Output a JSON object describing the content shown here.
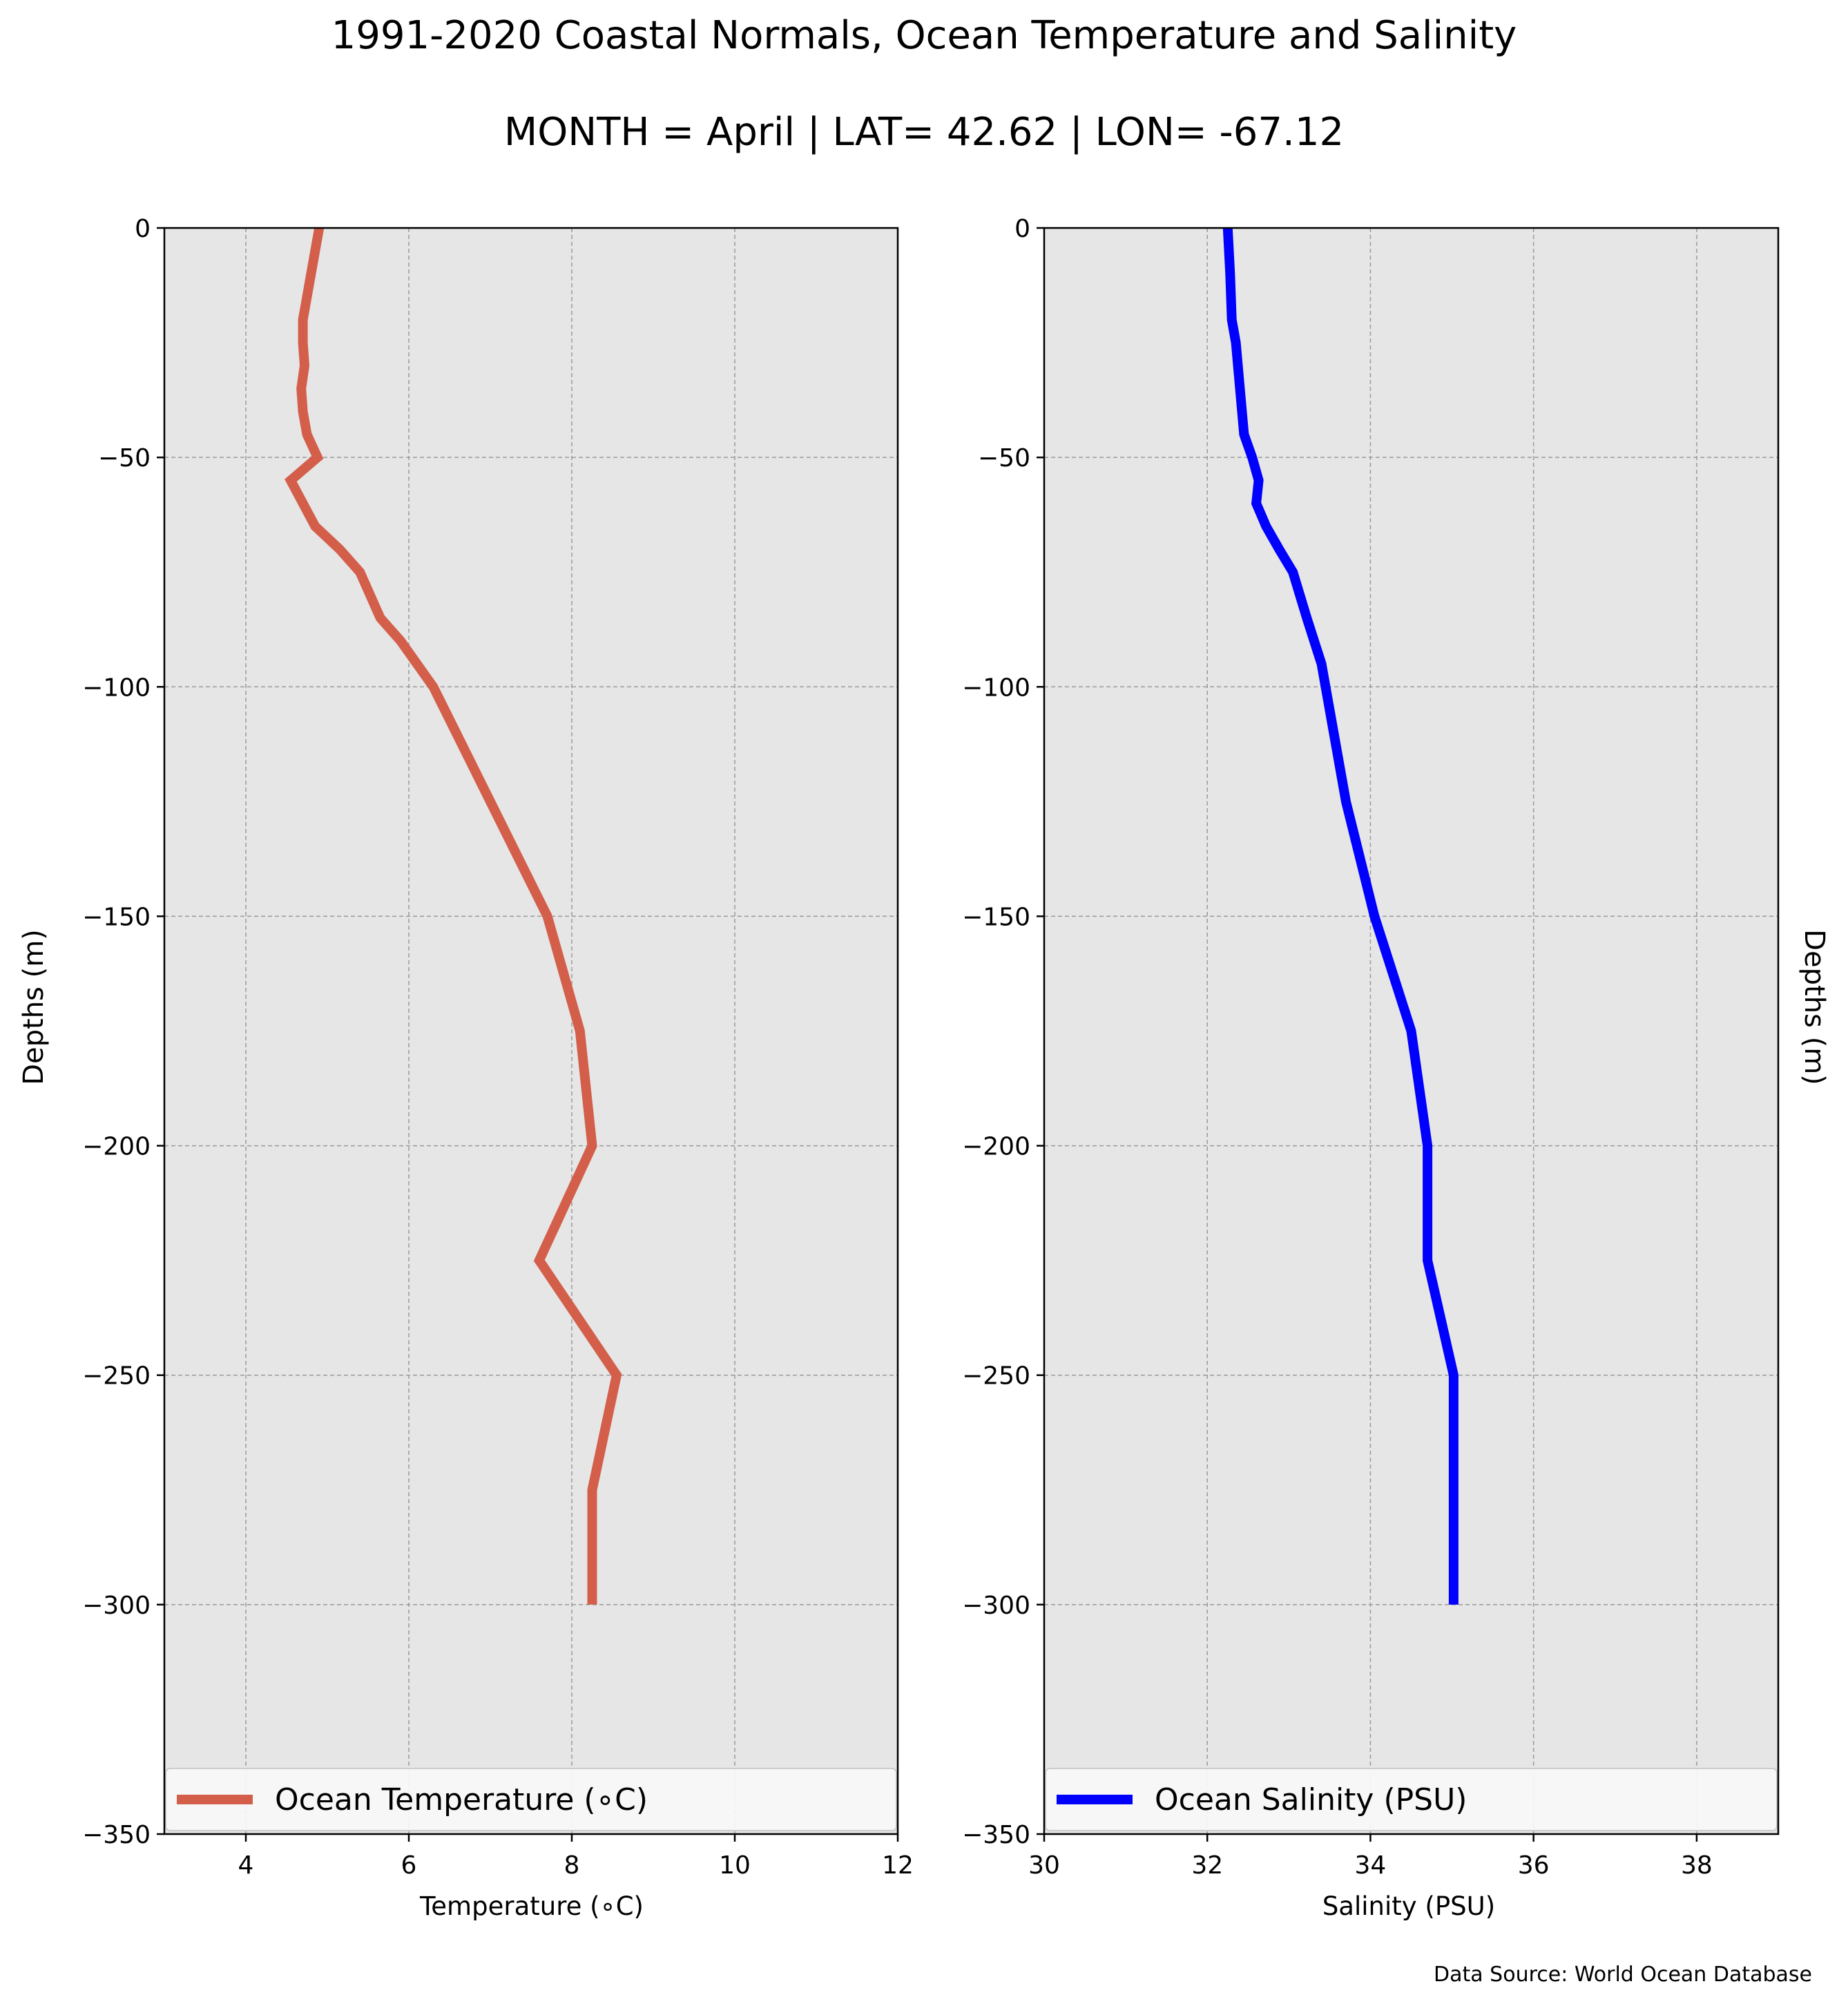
{
  "title": "1991-2020 Coastal Normals, Ocean Temperature and Salinity",
  "subtitle": "MONTH = April | LAT= 42.62 | LON= -67.12",
  "source_note": "Data Source: World Ocean Database",
  "colors": {
    "temperature": "#d35f4b",
    "salinity": "#0000ff",
    "plot_bg": "#e6e6e6",
    "grid": "#9a9a9a"
  },
  "chart_data": [
    {
      "type": "line",
      "orientation": "vertical-profile",
      "xlabel": "Temperature ($^\\circ$C)",
      "xlabel_display": "Temperature (∘C)",
      "ylabel": "Depths (m)",
      "xlim": [
        3,
        12
      ],
      "ylim": [
        -350,
        0
      ],
      "xticks": [
        4,
        6,
        8,
        10,
        12
      ],
      "yticks": [
        0,
        -50,
        -100,
        -150,
        -200,
        -250,
        -300,
        -350
      ],
      "ytick_labels": [
        "0",
        "−50",
        "−100",
        "−150",
        "−200",
        "−250",
        "−300",
        "−350"
      ],
      "grid": true,
      "legend_position": "bottom",
      "series": [
        {
          "name": "Ocean Temperature (∘C)",
          "x": [
            4.9,
            4.8,
            4.75,
            4.7,
            4.7,
            4.72,
            4.68,
            4.7,
            4.75,
            4.88,
            4.55,
            4.85,
            5.15,
            5.4,
            5.65,
            5.9,
            6.3,
            7.0,
            7.7,
            8.1,
            8.25,
            7.6,
            8.55,
            8.25,
            8.25
          ],
          "y": [
            0,
            -10,
            -15,
            -20,
            -25,
            -30,
            -35,
            -40,
            -45,
            -50,
            -55,
            -65,
            -70,
            -75,
            -85,
            -90,
            -100,
            -125,
            -150,
            -175,
            -200,
            -225,
            -250,
            -275,
            -300
          ]
        }
      ]
    },
    {
      "type": "line",
      "orientation": "vertical-profile",
      "xlabel": "Salinity (PSU)",
      "ylabel": "Depths (m)",
      "xlim": [
        30,
        39
      ],
      "ylim": [
        -350,
        0
      ],
      "xticks": [
        30,
        32,
        34,
        36,
        38
      ],
      "yticks": [
        0,
        -50,
        -100,
        -150,
        -200,
        -250,
        -300,
        -350
      ],
      "ytick_labels": [
        "0",
        "−50",
        "−100",
        "−150",
        "−200",
        "−250",
        "−300",
        "−350"
      ],
      "grid": true,
      "legend_position": "bottom",
      "series": [
        {
          "name": "Ocean Salinity (PSU)",
          "x": [
            32.25,
            32.28,
            32.3,
            32.35,
            32.4,
            32.45,
            32.55,
            32.63,
            32.6,
            32.72,
            32.88,
            33.05,
            33.22,
            33.4,
            33.7,
            34.05,
            34.5,
            34.7,
            34.7,
            35.02,
            35.02,
            35.02
          ],
          "y": [
            0,
            -10,
            -20,
            -25,
            -35,
            -45,
            -50,
            -55,
            -60,
            -65,
            -70,
            -75,
            -85,
            -95,
            -125,
            -150,
            -175,
            -200,
            -225,
            -250,
            -275,
            -300
          ]
        }
      ]
    }
  ]
}
